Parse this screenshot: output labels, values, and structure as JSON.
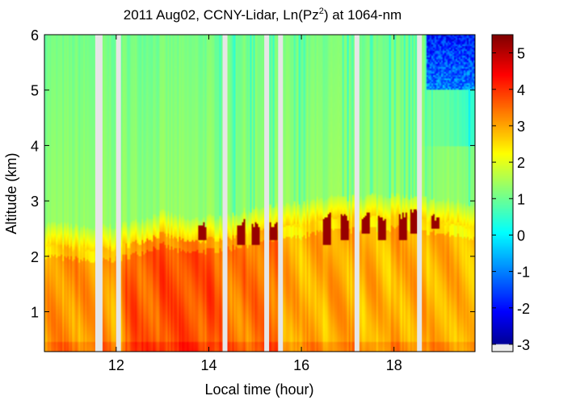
{
  "chart_data": {
    "type": "heatmap",
    "title": "2011 Aug02, CCNY-Lidar, Ln(Pz",
    "title_sup": "2",
    "title_tail": ") at 1064-nm",
    "xlabel": "Local time (hour)",
    "ylabel": "Altitude (km)",
    "xlim": [
      10.45,
      19.75
    ],
    "ylim": [
      0.28,
      6.0
    ],
    "xticks": [
      12,
      14,
      16,
      18
    ],
    "xtick_labels": [
      "12",
      "14",
      "16",
      "18"
    ],
    "yticks": [
      1,
      2,
      3,
      4,
      5,
      6
    ],
    "ytick_labels": [
      "1",
      "2",
      "3",
      "4",
      "5",
      "6"
    ],
    "colorbar": {
      "colormap": "jet",
      "range": [
        -3.2,
        5.5
      ],
      "ticks": [
        5,
        4,
        3,
        2,
        1,
        0,
        -1,
        -2,
        -3
      ],
      "tick_labels": [
        "5",
        "4",
        "3",
        "2",
        "1",
        "0",
        "-1",
        "-2",
        "-3"
      ]
    },
    "data_gaps_hour": [
      11.6,
      12.05,
      14.35,
      15.25,
      15.55,
      17.2,
      18.55
    ],
    "boundary_layer_top_km": [
      [
        10.5,
        2.25
      ],
      [
        11.0,
        2.2
      ],
      [
        11.5,
        2.15
      ],
      [
        12.0,
        2.2
      ],
      [
        12.5,
        2.3
      ],
      [
        13.0,
        2.45
      ],
      [
        13.5,
        2.3
      ],
      [
        14.0,
        2.35
      ],
      [
        14.5,
        2.4
      ],
      [
        15.0,
        2.5
      ],
      [
        15.5,
        2.55
      ],
      [
        16.0,
        2.6
      ],
      [
        16.5,
        2.7
      ],
      [
        17.0,
        2.7
      ],
      [
        17.5,
        2.75
      ],
      [
        18.0,
        2.75
      ],
      [
        18.5,
        2.7
      ],
      [
        19.0,
        2.65
      ],
      [
        19.7,
        2.6
      ]
    ],
    "cloud_events": [
      [
        13.85,
        2.3,
        2.6
      ],
      [
        14.7,
        2.2,
        2.6
      ],
      [
        15.0,
        2.2,
        2.55
      ],
      [
        15.4,
        2.3,
        2.55
      ],
      [
        16.55,
        2.2,
        2.75
      ],
      [
        16.95,
        2.3,
        2.7
      ],
      [
        17.4,
        2.4,
        2.75
      ],
      [
        17.75,
        2.3,
        2.7
      ],
      [
        18.2,
        2.3,
        2.75
      ],
      [
        18.45,
        2.4,
        2.8
      ],
      [
        18.9,
        2.5,
        2.7
      ]
    ]
  }
}
